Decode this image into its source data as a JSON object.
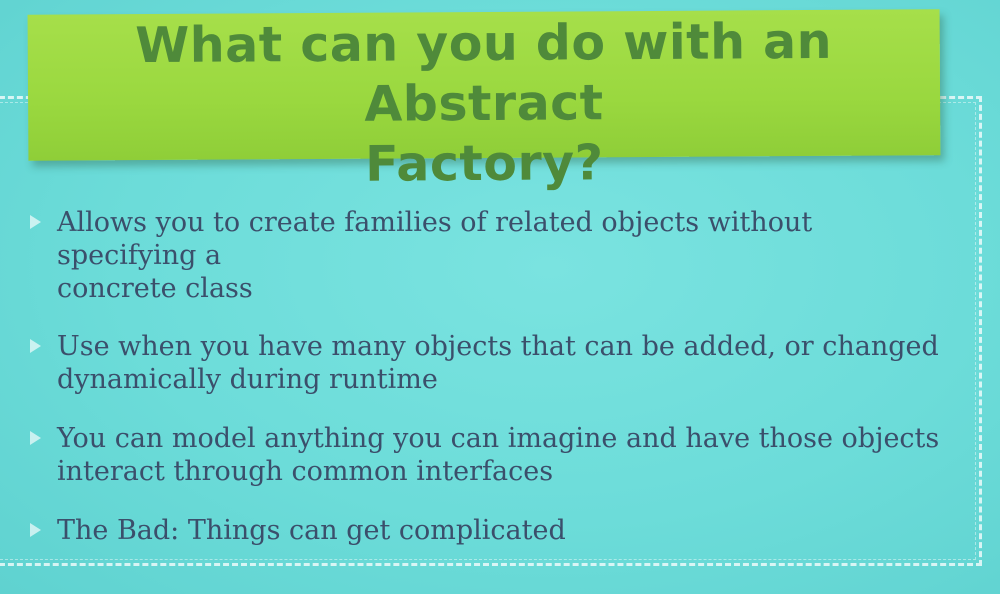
{
  "slide": {
    "title_line1": "What can you do with an Abstract",
    "title_line2": "Factory?",
    "bullets": [
      {
        "line1": "Allows you to create families of related objects without specifying a",
        "line2": "concrete class"
      },
      {
        "line1": "Use when you have many objects that can be added, or changed",
        "line2": "dynamically during runtime"
      },
      {
        "line1": "You can model anything you can imagine and have those objects",
        "line2": "interact through common interfaces"
      },
      {
        "line1": "The Bad: Things can get complicated",
        "line2": ""
      }
    ]
  },
  "colors": {
    "background": "#6cdcd9",
    "title_card": "#9ad83f",
    "title_text": "#4f8a3a",
    "body_text": "#3b4f6b"
  }
}
